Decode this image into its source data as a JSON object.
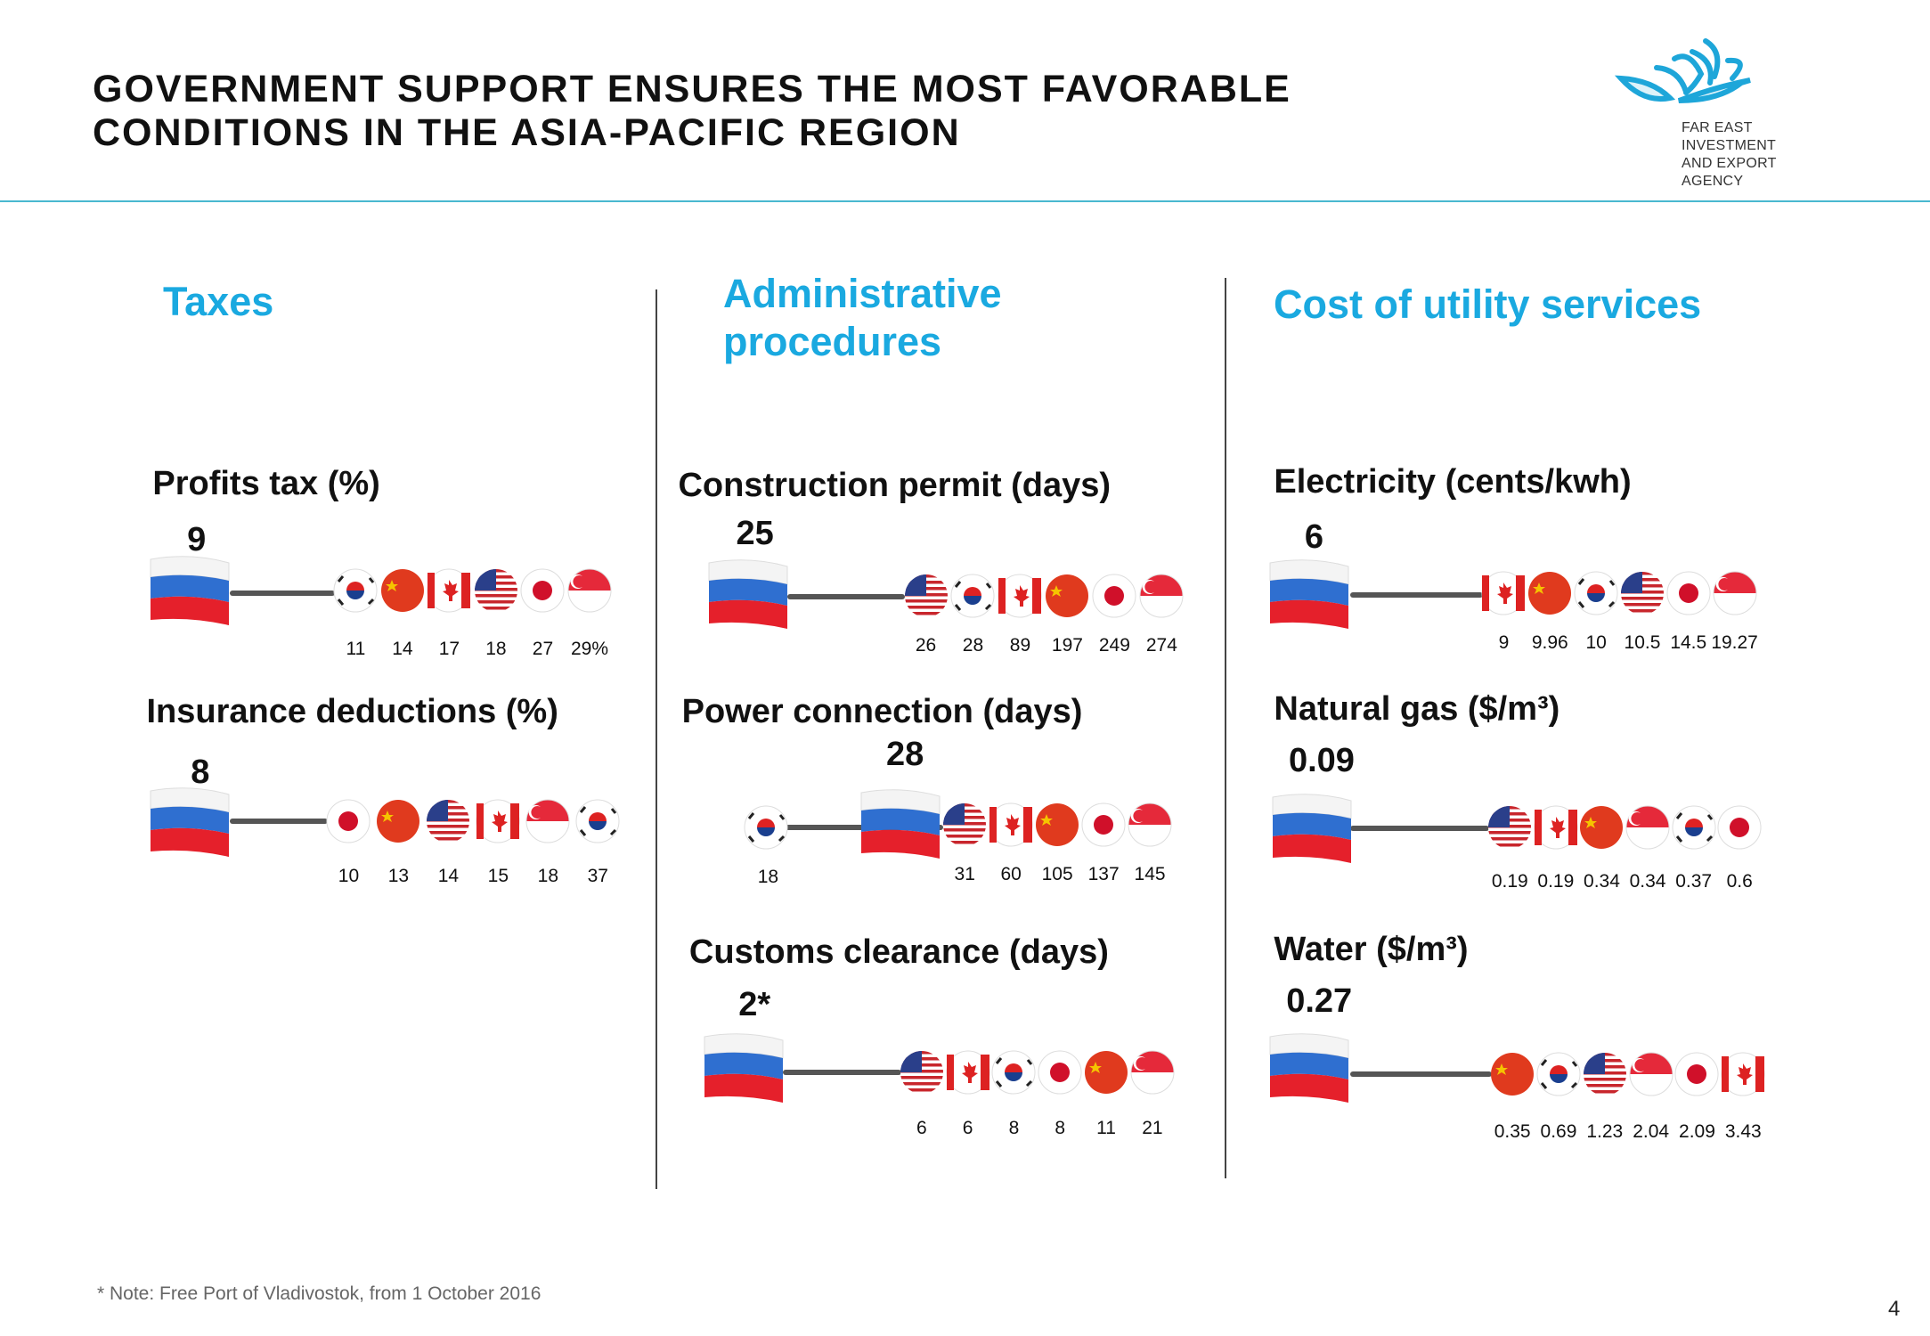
{
  "header": {
    "title_line1": "GOVERNMENT SUPPORT ENSURES THE MOST FAVORABLE",
    "title_line2": "CONDITIONS IN THE ASIA-PACIFIC REGION",
    "logo_line1": "FAR EAST INVESTMENT",
    "logo_line2": "AND EXPORT AGENCY",
    "accent_color": "#1aa9e0"
  },
  "sections": {
    "taxes": "Taxes",
    "admin_line1": "Administrative",
    "admin_line2": "procedures",
    "utilities": "Cost of utility services"
  },
  "metrics": [
    {
      "title": "Profits tax (%)",
      "russia_value": "9",
      "countries": [
        "korea",
        "china",
        "canada",
        "usa",
        "japan",
        "singapore"
      ],
      "values": [
        "11",
        "14",
        "17",
        "18",
        "27",
        "29%"
      ]
    },
    {
      "title": "Insurance deductions (%)",
      "russia_value": "8",
      "countries": [
        "japan",
        "china",
        "usa",
        "canada",
        "singapore",
        "korea"
      ],
      "values": [
        "10",
        "13",
        "14",
        "15",
        "18",
        "37"
      ]
    },
    {
      "title": "Construction permit (days)",
      "russia_value": "25",
      "countries": [
        "usa",
        "korea",
        "canada",
        "china",
        "japan",
        "singapore"
      ],
      "values": [
        "26",
        "28",
        "89",
        "197",
        "249",
        "274"
      ]
    },
    {
      "title": "Power connection (days)",
      "russia_value": "28",
      "left_country": "korea",
      "left_value": "18",
      "countries": [
        "usa",
        "canada",
        "china",
        "japan",
        "singapore"
      ],
      "values": [
        "31",
        "60",
        "105",
        "137",
        "145"
      ]
    },
    {
      "title": "Customs clearance (days)",
      "russia_value": "2*",
      "countries": [
        "usa",
        "canada",
        "korea",
        "japan",
        "china",
        "singapore"
      ],
      "values": [
        "6",
        "6",
        "8",
        "8",
        "11",
        "21"
      ]
    },
    {
      "title": "Electricity (cents/kwh)",
      "russia_value": "6",
      "countries": [
        "canada",
        "china",
        "korea",
        "usa",
        "japan",
        "singapore"
      ],
      "values": [
        "9",
        "9.96",
        "10",
        "10.5",
        "14.5",
        "19.27"
      ]
    },
    {
      "title": "Natural gas ($/m³)",
      "russia_value": "0.09",
      "countries": [
        "usa",
        "canada",
        "china",
        "singapore",
        "korea",
        "japan"
      ],
      "values": [
        "0.19",
        "0.19",
        "0.34",
        "0.34",
        "0.37",
        "0.6"
      ]
    },
    {
      "title": "Water ($/m³)",
      "russia_value": "0.27",
      "countries": [
        "china",
        "korea",
        "usa",
        "singapore",
        "japan",
        "canada"
      ],
      "values": [
        "0.35",
        "0.69",
        "1.23",
        "2.04",
        "2.09",
        "3.43"
      ]
    }
  ],
  "footnote": "* Note: Free Port of Vladivostok, from 1 October 2016",
  "page_number": "4"
}
